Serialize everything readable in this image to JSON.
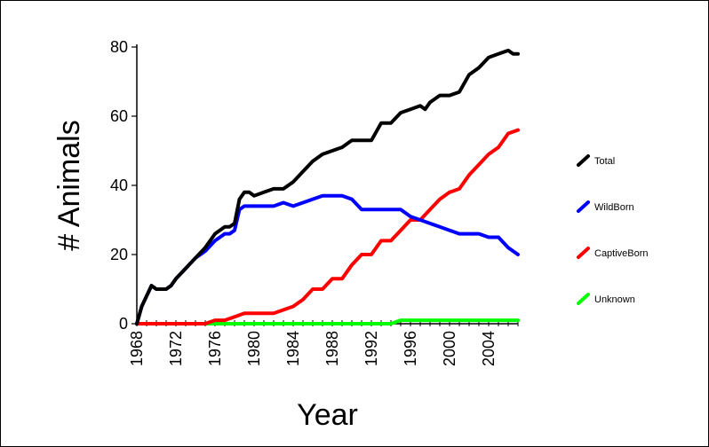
{
  "chart_data": {
    "type": "line",
    "xlabel": "Year",
    "ylabel": "# Animals",
    "xlim": [
      1968,
      2007
    ],
    "ylim": [
      0,
      80
    ],
    "x_ticks": [
      1968,
      1972,
      1976,
      1980,
      1984,
      1988,
      1992,
      1996,
      2000,
      2004
    ],
    "y_ticks": [
      0,
      20,
      40,
      60,
      80
    ],
    "grid": false,
    "legend_position": "right",
    "series": [
      {
        "name": "Total",
        "color": "#000000",
        "x": [
          1968,
          1968.5,
          1969,
          1969.5,
          1970,
          1970.5,
          1971,
          1971.5,
          1972,
          1973,
          1974,
          1975,
          1976,
          1977,
          1977.5,
          1978,
          1978.5,
          1979,
          1979.5,
          1980,
          1981,
          1982,
          1983,
          1984,
          1985,
          1986,
          1987,
          1988,
          1989,
          1990,
          1991,
          1992,
          1993,
          1994,
          1995,
          1996,
          1997,
          1997.5,
          1998,
          1999,
          2000,
          2001,
          2002,
          2003,
          2004,
          2005,
          2006,
          2006.5,
          2007
        ],
        "y": [
          0,
          5,
          8,
          11,
          10,
          10,
          10,
          11,
          13,
          16,
          19,
          22,
          26,
          28,
          28,
          29,
          36,
          38,
          38,
          37,
          38,
          39,
          39,
          41,
          44,
          47,
          49,
          50,
          51,
          53,
          53,
          53,
          58,
          58,
          61,
          62,
          63,
          62,
          64,
          66,
          66,
          67,
          72,
          74,
          77,
          78,
          79,
          78,
          78
        ]
      },
      {
        "name": "WildBorn",
        "color": "#0000ff",
        "x": [
          1968,
          1968.5,
          1969,
          1969.5,
          1970,
          1970.5,
          1971,
          1971.5,
          1972,
          1973,
          1974,
          1975,
          1976,
          1977,
          1977.5,
          1978,
          1978.5,
          1979,
          1980,
          1981,
          1982,
          1983,
          1984,
          1985,
          1986,
          1987,
          1988,
          1989,
          1990,
          1991,
          1992,
          1993,
          1994,
          1995,
          1996,
          1997,
          1998,
          1999,
          2000,
          2001,
          2002,
          2003,
          2004,
          2005,
          2006,
          2006.5,
          2007
        ],
        "y": [
          0,
          5,
          8,
          11,
          10,
          10,
          10,
          11,
          13,
          16,
          19,
          21,
          24,
          26,
          26,
          27,
          33,
          34,
          34,
          34,
          34,
          35,
          34,
          35,
          36,
          37,
          37,
          37,
          36,
          33,
          33,
          33,
          33,
          33,
          31,
          30,
          29,
          28,
          27,
          26,
          26,
          26,
          25,
          25,
          22,
          21,
          20
        ]
      },
      {
        "name": "CaptiveBorn",
        "color": "#ff0000",
        "x": [
          1968,
          1975,
          1976,
          1977,
          1978,
          1979,
          1980,
          1981,
          1982,
          1983,
          1984,
          1985,
          1986,
          1987,
          1988,
          1989,
          1990,
          1991,
          1992,
          1993,
          1994,
          1995,
          1996,
          1997,
          1998,
          1999,
          2000,
          2001,
          2002,
          2003,
          2004,
          2005,
          2006,
          2007
        ],
        "y": [
          0,
          0,
          1,
          1,
          2,
          3,
          3,
          3,
          3,
          4,
          5,
          7,
          10,
          10,
          13,
          13,
          17,
          20,
          20,
          24,
          24,
          27,
          30,
          30,
          33,
          36,
          38,
          39,
          43,
          46,
          49,
          51,
          55,
          56
        ]
      },
      {
        "name": "Unknown",
        "color": "#00ff00",
        "x": [
          1968,
          1994,
          1995,
          2007
        ],
        "y": [
          0,
          0,
          1,
          1
        ]
      }
    ]
  }
}
